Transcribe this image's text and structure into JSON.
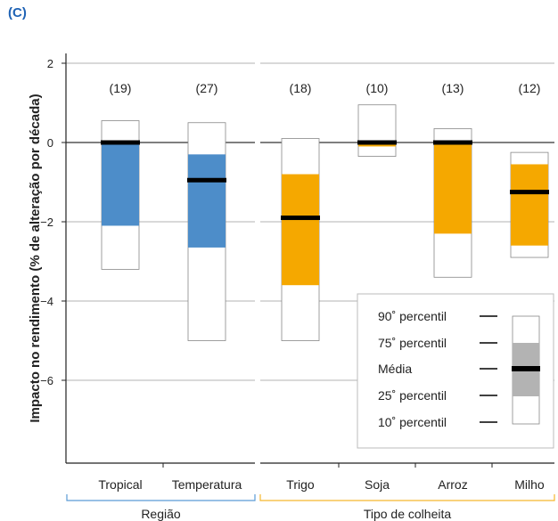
{
  "panel_label": "(C)",
  "chart_data": {
    "type": "box",
    "ylabel": "Impacto no rendimento (% de alteração por década)",
    "ylim": [
      -8,
      2
    ],
    "yticks": [
      2,
      0,
      -2,
      -4,
      -6
    ],
    "ytick_labels": [
      "2",
      "0",
      "−2",
      "−4",
      "−6"
    ],
    "colors": {
      "region": "#4d8dc9",
      "crop": "#f5a800",
      "legend": "#b3b3b3",
      "grid": "#9a9a9a",
      "zero_line": "#7f7f7f",
      "region_bracket": "#5b9bd5",
      "crop_bracket": "#f5b82e"
    },
    "groups": [
      {
        "name": "Região",
        "color": "region",
        "categories": [
          {
            "label": "Tropical",
            "count": "(19)",
            "p10": -3.2,
            "p25": -2.1,
            "median": 0.0,
            "p75": 0.0,
            "p90": 0.55
          },
          {
            "label": "Temperatura",
            "count": "(27)",
            "p10": -5.0,
            "p25": -2.65,
            "median": -0.95,
            "p75": -0.3,
            "p90": 0.5
          }
        ]
      },
      {
        "name": "Tipo de colheita",
        "color": "crop",
        "categories": [
          {
            "label": "Trigo",
            "count": "(18)",
            "p10": -5.0,
            "p25": -3.6,
            "median": -1.9,
            "p75": -0.8,
            "p90": 0.1
          },
          {
            "label": "Soja",
            "count": "(10)",
            "p10": -0.35,
            "p25": -0.1,
            "median": 0.0,
            "p75": 0.0,
            "p90": 0.95
          },
          {
            "label": "Arroz",
            "count": "(13)",
            "p10": -3.4,
            "p25": -2.3,
            "median": 0.0,
            "p75": 0.0,
            "p90": 0.35
          },
          {
            "label": "Milho",
            "count": "(12)",
            "p10": -2.9,
            "p25": -2.6,
            "median": -1.25,
            "p75": -0.55,
            "p90": -0.25
          }
        ]
      }
    ],
    "legend": {
      "items": [
        "90˚ percentil",
        "75˚ percentil",
        "Média",
        "25˚ percentil",
        "10˚ percentil"
      ]
    }
  }
}
